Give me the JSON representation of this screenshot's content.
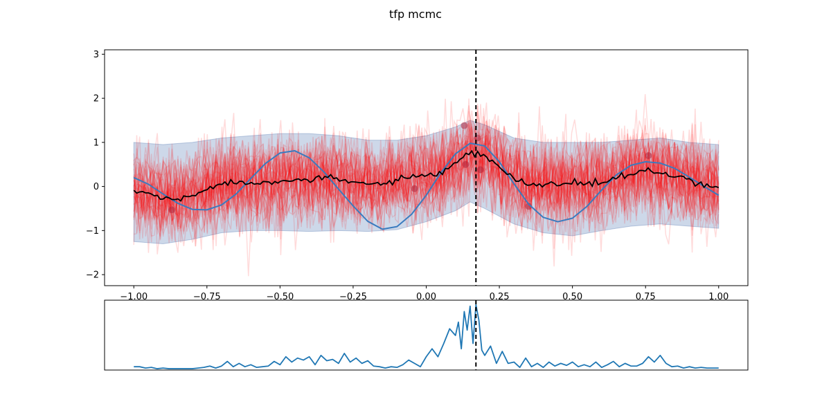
{
  "figure": {
    "title": "tfp mcmc"
  },
  "chart_data": [
    {
      "type": "line",
      "panel": "main",
      "xlim": [
        -1.1,
        1.1
      ],
      "ylim": [
        -2.25,
        3.1
      ],
      "xticks": [
        -1.0,
        -0.75,
        -0.5,
        -0.25,
        0.0,
        0.25,
        0.5,
        0.75,
        1.0
      ],
      "xtick_labels": [
        "−1.00",
        "−0.75",
        "−0.50",
        "−0.25",
        "0.00",
        "0.25",
        "0.50",
        "0.75",
        "1.00"
      ],
      "yticks": [
        -2,
        -1,
        0,
        1,
        2,
        3
      ],
      "ytick_labels": [
        "−2",
        "−1",
        "0",
        "1",
        "2",
        "3"
      ],
      "grid": false,
      "vline_x": 0.17,
      "colors": {
        "samples": "#ff0000",
        "band": "#4c72b0",
        "true_function": "#3a7bbf",
        "posterior_mean": "#000000",
        "observations": "#b0223a",
        "vline": "#000000"
      },
      "true_function": {
        "x": [
          -1.0,
          -0.95,
          -0.9,
          -0.85,
          -0.8,
          -0.75,
          -0.7,
          -0.65,
          -0.6,
          -0.55,
          -0.5,
          -0.45,
          -0.4,
          -0.35,
          -0.3,
          -0.25,
          -0.2,
          -0.15,
          -0.1,
          -0.05,
          0.0,
          0.05,
          0.1,
          0.15,
          0.2,
          0.25,
          0.3,
          0.35,
          0.4,
          0.45,
          0.5,
          0.55,
          0.6,
          0.65,
          0.7,
          0.75,
          0.8,
          0.85,
          0.9,
          0.95,
          1.0
        ],
        "y": [
          0.2,
          0.05,
          -0.17,
          -0.38,
          -0.52,
          -0.53,
          -0.42,
          -0.17,
          0.18,
          0.52,
          0.76,
          0.81,
          0.65,
          0.33,
          -0.06,
          -0.44,
          -0.79,
          -0.97,
          -0.91,
          -0.63,
          -0.2,
          0.31,
          0.74,
          0.98,
          0.92,
          0.56,
          0.06,
          -0.4,
          -0.7,
          -0.8,
          -0.72,
          -0.45,
          -0.08,
          0.26,
          0.48,
          0.56,
          0.53,
          0.41,
          0.21,
          0.0,
          -0.2
        ]
      },
      "posterior_mean": {
        "x": [
          -1.0,
          -0.95,
          -0.9,
          -0.85,
          -0.8,
          -0.75,
          -0.7,
          -0.65,
          -0.6,
          -0.55,
          -0.5,
          -0.45,
          -0.4,
          -0.35,
          -0.3,
          -0.25,
          -0.2,
          -0.15,
          -0.1,
          -0.05,
          0.0,
          0.05,
          0.1,
          0.15,
          0.2,
          0.25,
          0.3,
          0.35,
          0.4,
          0.45,
          0.5,
          0.55,
          0.6,
          0.65,
          0.7,
          0.75,
          0.8,
          0.85,
          0.9,
          0.95,
          1.0
        ],
        "y": [
          -0.12,
          -0.15,
          -0.27,
          -0.3,
          -0.22,
          -0.02,
          0.05,
          0.1,
          0.08,
          0.1,
          0.15,
          0.17,
          0.12,
          0.2,
          0.15,
          0.1,
          0.05,
          0.07,
          0.15,
          0.18,
          0.25,
          0.3,
          0.5,
          0.75,
          0.7,
          0.45,
          0.15,
          0.05,
          0.05,
          0.05,
          0.08,
          0.06,
          0.08,
          0.2,
          0.25,
          0.38,
          0.3,
          0.2,
          0.15,
          0.05,
          -0.02
        ]
      },
      "band": {
        "x": [
          -1.0,
          -0.9,
          -0.8,
          -0.7,
          -0.6,
          -0.5,
          -0.4,
          -0.3,
          -0.2,
          -0.1,
          0.0,
          0.1,
          0.15,
          0.2,
          0.3,
          0.4,
          0.5,
          0.6,
          0.7,
          0.8,
          0.9,
          1.0
        ],
        "lower": [
          -1.25,
          -1.3,
          -1.2,
          -1.05,
          -1.0,
          -1.0,
          -1.02,
          -1.0,
          -1.02,
          -0.98,
          -0.8,
          -0.55,
          -0.35,
          -0.5,
          -0.85,
          -1.05,
          -1.12,
          -1.0,
          -0.9,
          -0.85,
          -0.9,
          -0.95
        ],
        "upper": [
          1.0,
          0.95,
          1.0,
          1.1,
          1.15,
          1.2,
          1.2,
          1.15,
          1.05,
          1.05,
          1.15,
          1.35,
          1.5,
          1.4,
          1.1,
          1.0,
          1.0,
          1.0,
          1.05,
          1.1,
          1.0,
          0.95
        ]
      },
      "observations": {
        "x": [
          -0.87,
          -0.04,
          0.13,
          0.135,
          0.175,
          0.185,
          0.35,
          0.76
        ],
        "y": [
          -0.53,
          -0.05,
          1.38,
          0.5,
          1.1,
          0.38,
          -0.45,
          0.7
        ]
      },
      "samples": {
        "count": 40,
        "noise_sd": 0.45
      }
    },
    {
      "type": "line",
      "panel": "bottom",
      "xlim": [
        -1.1,
        1.1
      ],
      "ylim": [
        0.0,
        1.05
      ],
      "grid": false,
      "vline_x": 0.17,
      "series": [
        {
          "color": "#1f77b4",
          "x": [
            -1.0,
            -0.98,
            -0.96,
            -0.94,
            -0.92,
            -0.9,
            -0.88,
            -0.86,
            -0.84,
            -0.82,
            -0.8,
            -0.78,
            -0.76,
            -0.74,
            -0.72,
            -0.7,
            -0.68,
            -0.66,
            -0.64,
            -0.62,
            -0.6,
            -0.58,
            -0.56,
            -0.54,
            -0.52,
            -0.5,
            -0.48,
            -0.46,
            -0.44,
            -0.42,
            -0.4,
            -0.38,
            -0.36,
            -0.34,
            -0.32,
            -0.3,
            -0.28,
            -0.26,
            -0.24,
            -0.22,
            -0.2,
            -0.18,
            -0.16,
            -0.14,
            -0.12,
            -0.1,
            -0.08,
            -0.06,
            -0.04,
            -0.02,
            0.0,
            0.02,
            0.04,
            0.06,
            0.08,
            0.1,
            0.11,
            0.12,
            0.13,
            0.14,
            0.15,
            0.16,
            0.17,
            0.18,
            0.19,
            0.2,
            0.22,
            0.24,
            0.26,
            0.28,
            0.3,
            0.32,
            0.34,
            0.36,
            0.38,
            0.4,
            0.42,
            0.44,
            0.46,
            0.48,
            0.5,
            0.52,
            0.54,
            0.56,
            0.58,
            0.6,
            0.62,
            0.64,
            0.66,
            0.68,
            0.7,
            0.72,
            0.74,
            0.76,
            0.78,
            0.8,
            0.82,
            0.84,
            0.86,
            0.88,
            0.9,
            0.92,
            0.94,
            0.96,
            0.98,
            1.0
          ],
          "y": [
            0.05,
            0.05,
            0.03,
            0.04,
            0.02,
            0.03,
            0.02,
            0.02,
            0.02,
            0.02,
            0.02,
            0.03,
            0.04,
            0.06,
            0.03,
            0.06,
            0.13,
            0.05,
            0.1,
            0.05,
            0.08,
            0.04,
            0.05,
            0.06,
            0.13,
            0.08,
            0.2,
            0.12,
            0.18,
            0.15,
            0.2,
            0.08,
            0.22,
            0.14,
            0.16,
            0.1,
            0.25,
            0.12,
            0.18,
            0.1,
            0.14,
            0.06,
            0.05,
            0.03,
            0.05,
            0.04,
            0.08,
            0.15,
            0.1,
            0.05,
            0.2,
            0.32,
            0.2,
            0.4,
            0.62,
            0.52,
            0.72,
            0.32,
            0.88,
            0.6,
            0.96,
            0.4,
            0.98,
            0.75,
            0.3,
            0.22,
            0.36,
            0.1,
            0.28,
            0.1,
            0.12,
            0.04,
            0.18,
            0.05,
            0.1,
            0.04,
            0.12,
            0.06,
            0.1,
            0.07,
            0.12,
            0.05,
            0.08,
            0.05,
            0.12,
            0.04,
            0.08,
            0.13,
            0.05,
            0.1,
            0.06,
            0.06,
            0.1,
            0.2,
            0.12,
            0.22,
            0.1,
            0.05,
            0.06,
            0.03,
            0.05,
            0.03,
            0.04,
            0.03,
            0.03,
            0.03
          ]
        }
      ]
    }
  ]
}
